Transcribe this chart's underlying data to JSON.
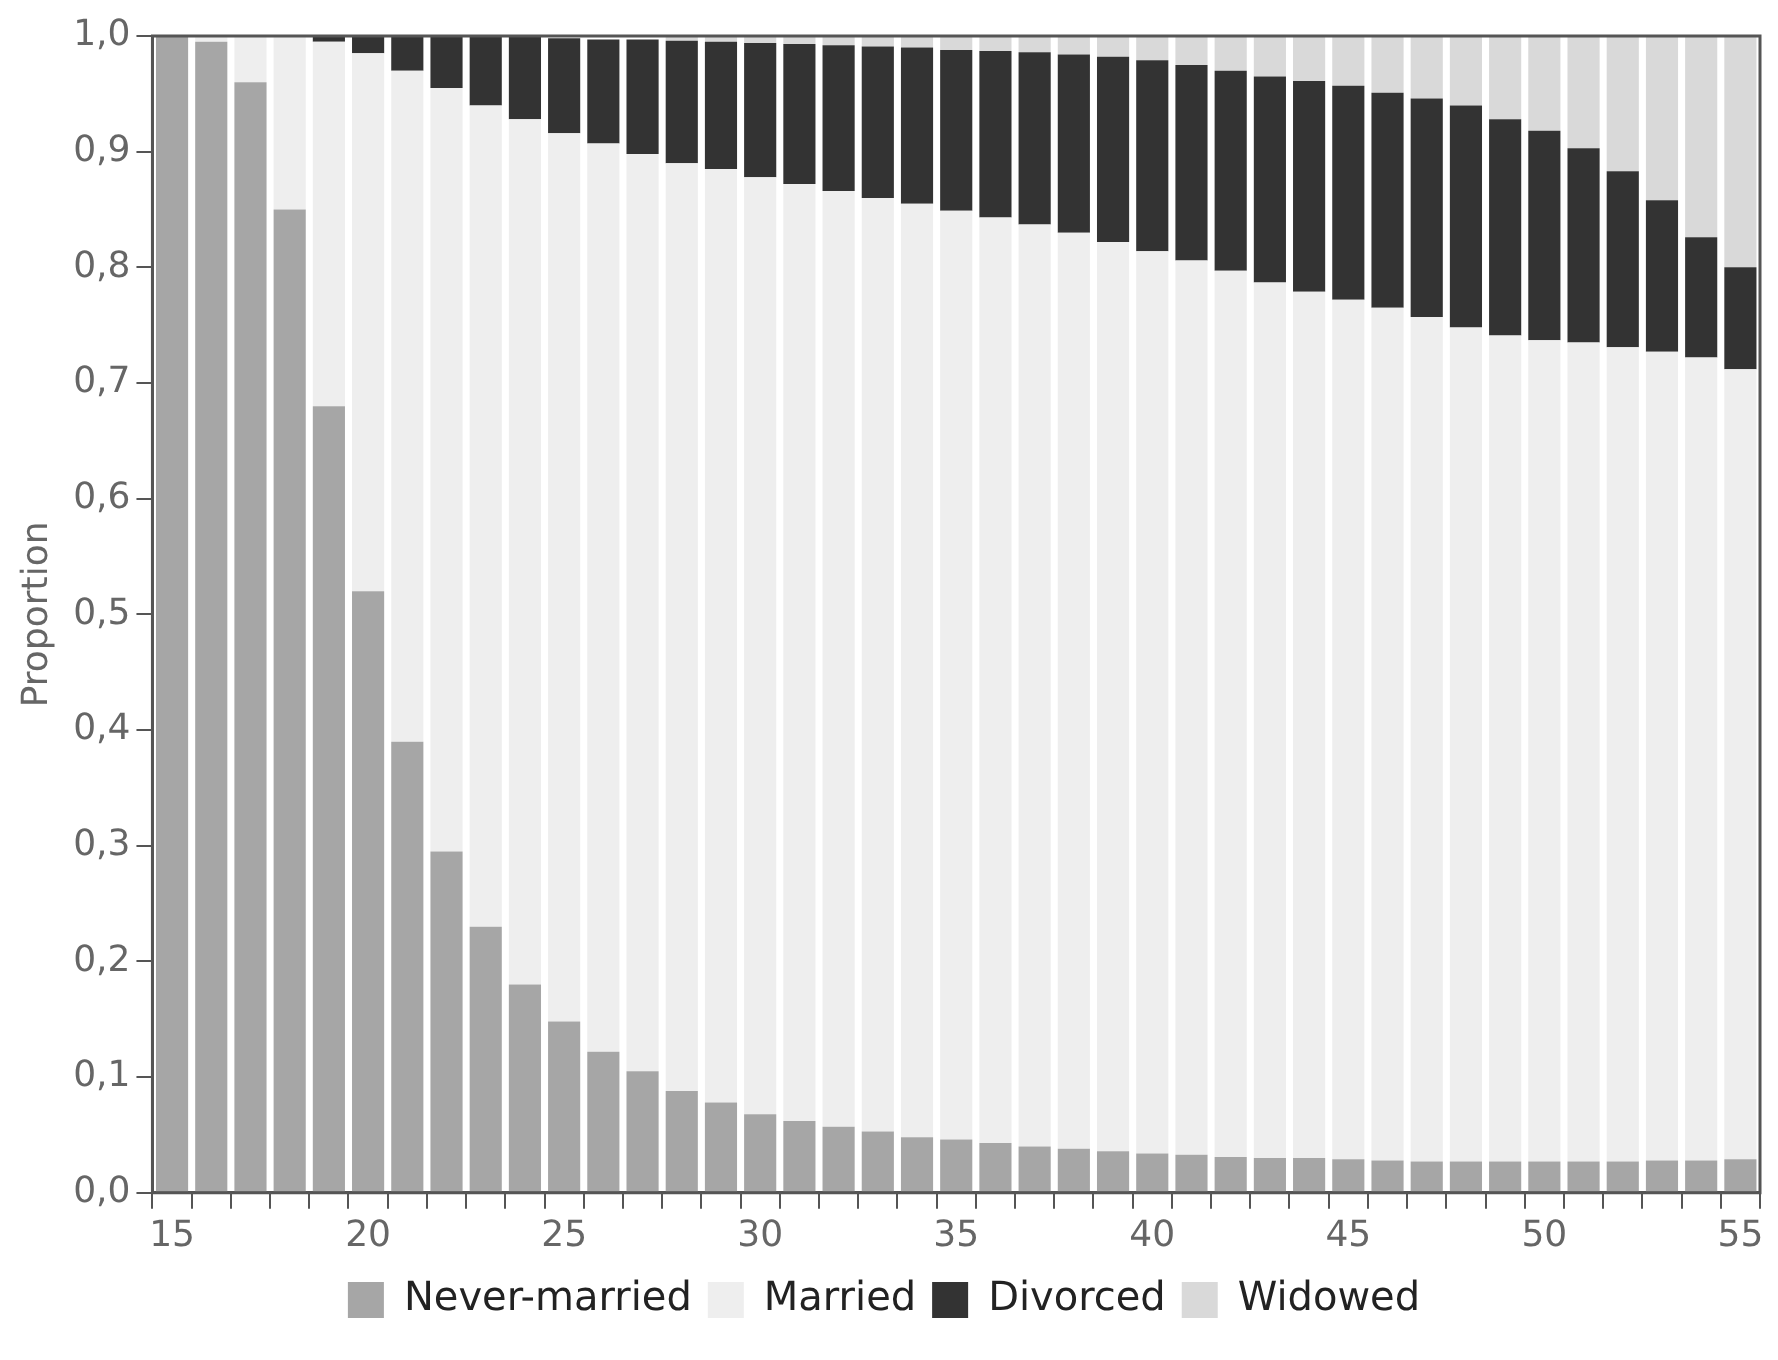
{
  "chart_data": {
    "type": "bar",
    "stacked": true,
    "ylabel": "Proportion",
    "categories": [
      "15",
      null,
      null,
      null,
      null,
      "20",
      null,
      null,
      null,
      null,
      "25",
      null,
      null,
      null,
      null,
      "30",
      null,
      null,
      null,
      null,
      "35",
      null,
      null,
      null,
      null,
      "40",
      null,
      null,
      null,
      null,
      "45",
      null,
      null,
      null,
      null,
      "50",
      null,
      null,
      null,
      null,
      "55"
    ],
    "series": [
      {
        "name": "Never-married",
        "color": "#a6a6a6",
        "values": [
          1.0,
          0.995,
          0.96,
          0.85,
          0.68,
          0.52,
          0.39,
          0.295,
          0.23,
          0.18,
          0.148,
          0.122,
          0.105,
          0.088,
          0.078,
          0.068,
          0.062,
          0.057,
          0.053,
          0.048,
          0.046,
          0.043,
          0.04,
          0.038,
          0.036,
          0.034,
          0.033,
          0.031,
          0.03,
          0.03,
          0.029,
          0.028,
          0.027,
          0.027,
          0.027,
          0.027,
          0.027,
          0.027,
          0.028,
          0.028,
          0.029
        ]
      },
      {
        "name": "Married",
        "color": "#eeeeee",
        "values": [
          0,
          0.005,
          0.04,
          0.15,
          0.315,
          0.465,
          0.58,
          0.66,
          0.71,
          0.748,
          0.768,
          0.785,
          0.793,
          0.802,
          0.807,
          0.81,
          0.81,
          0.809,
          0.807,
          0.807,
          0.803,
          0.8,
          0.797,
          0.792,
          0.786,
          0.78,
          0.773,
          0.766,
          0.757,
          0.749,
          0.743,
          0.737,
          0.73,
          0.721,
          0.714,
          0.71,
          0.708,
          0.704,
          0.699,
          0.694,
          0.683
        ]
      },
      {
        "name": "Divorced",
        "color": "#333333",
        "values": [
          0,
          0,
          0,
          0,
          0.005,
          0.015,
          0.03,
          0.045,
          0.06,
          0.072,
          0.082,
          0.09,
          0.099,
          0.106,
          0.11,
          0.116,
          0.121,
          0.126,
          0.131,
          0.135,
          0.139,
          0.144,
          0.149,
          0.154,
          0.16,
          0.165,
          0.169,
          0.173,
          0.178,
          0.182,
          0.185,
          0.186,
          0.189,
          0.192,
          0.187,
          0.181,
          0.168,
          0.152,
          0.131,
          0.104,
          0.088
        ]
      },
      {
        "name": "Widowed",
        "color": "#d9d9d9",
        "values": [
          0,
          0,
          0,
          0,
          0,
          0,
          0,
          0,
          0,
          0,
          null,
          null,
          null,
          0.004,
          0.005,
          0.006,
          0.007,
          0.008,
          0.009,
          0.01,
          0.012,
          0.013,
          0.014,
          0.016,
          0.018,
          0.021,
          0.025,
          0.03,
          0.035,
          0.039,
          0.043,
          0.049,
          0.054,
          0.06,
          0.072,
          0.082,
          0.097,
          0.117,
          0.142,
          0.174,
          0.2
        ]
      }
    ],
    "ylim": [
      0,
      1
    ],
    "yticks": [
      {
        "value": 0,
        "label": "0,0"
      },
      {
        "value": 0.1,
        "label": "0,1"
      },
      {
        "value": 0.2,
        "label": "0,2"
      },
      {
        "value": 0.3,
        "label": "0,3"
      },
      {
        "value": 0.4,
        "label": "0,4"
      },
      {
        "value": 0.5,
        "label": "0,5"
      },
      {
        "value": 0.6,
        "label": "0,6"
      },
      {
        "value": 0.7,
        "label": "0,7"
      },
      {
        "value": 0.8,
        "label": "0,8"
      },
      {
        "value": 0.9,
        "label": "0,9"
      },
      {
        "value": 1,
        "label": "1,0"
      }
    ],
    "grid": false,
    "legend": "bottom"
  }
}
